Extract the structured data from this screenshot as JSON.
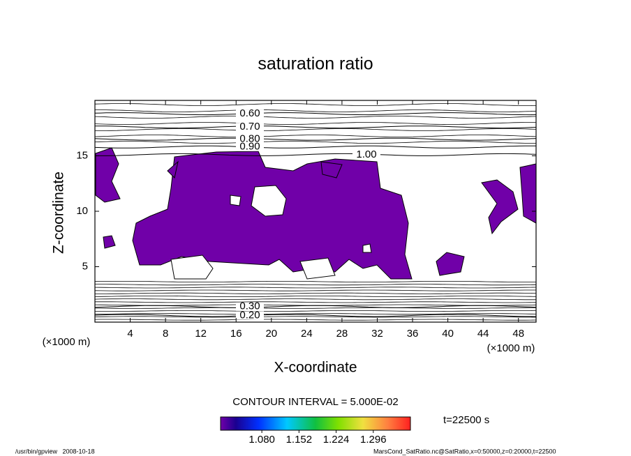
{
  "chart_data": {
    "type": "contour",
    "title": "saturation ratio",
    "x_label": "X-coordinate",
    "y_label": "Z-coordinate",
    "x_unit": "(×1000 m)",
    "y_unit": "(×1000 m)",
    "xlim": [
      0,
      50
    ],
    "ylim": [
      0,
      20
    ],
    "xticks": [
      4,
      8,
      12,
      16,
      20,
      24,
      28,
      32,
      36,
      40,
      44,
      48
    ],
    "yticks": [
      5,
      10,
      15
    ],
    "contours": [
      {
        "level": {
          "value": 0.6,
          "label": "0.60"
        },
        "z": 18.8
      },
      {
        "level": {
          "value": 0.7,
          "label": "0.70"
        },
        "z": 17.6
      },
      {
        "level": {
          "value": 0.8,
          "label": "0.80"
        },
        "z": 16.5
      },
      {
        "level": {
          "value": 0.9,
          "label": "0.90"
        },
        "z": 15.8
      },
      {
        "level": {
          "value": 1.0,
          "label": "1.00"
        },
        "z": 15.1
      },
      {
        "level": {
          "value": 0.3,
          "label": "0.30"
        },
        "z": 1.4
      },
      {
        "level": {
          "value": 0.2,
          "label": "0.20"
        },
        "z": 0.6
      }
    ],
    "contour_interval": "CONTOUR INTERVAL = 5.000E-02",
    "fill_color": "#7000a8",
    "clim": [
      1.0,
      1.368
    ],
    "cticks": [
      {
        "value": 1.08,
        "label": "1.080"
      },
      {
        "value": 1.152,
        "label": "1.152"
      },
      {
        "value": 1.224,
        "label": "1.224"
      },
      {
        "value": 1.296,
        "label": "1.296"
      }
    ],
    "time_label": "t=22500 s",
    "footer_left": "/usr/bin/gpview   2008-10-18",
    "footer_right": "MarsCond_SatRatio.nc@SatRatio,x=0:50000,z=0:20000,t=22500"
  }
}
